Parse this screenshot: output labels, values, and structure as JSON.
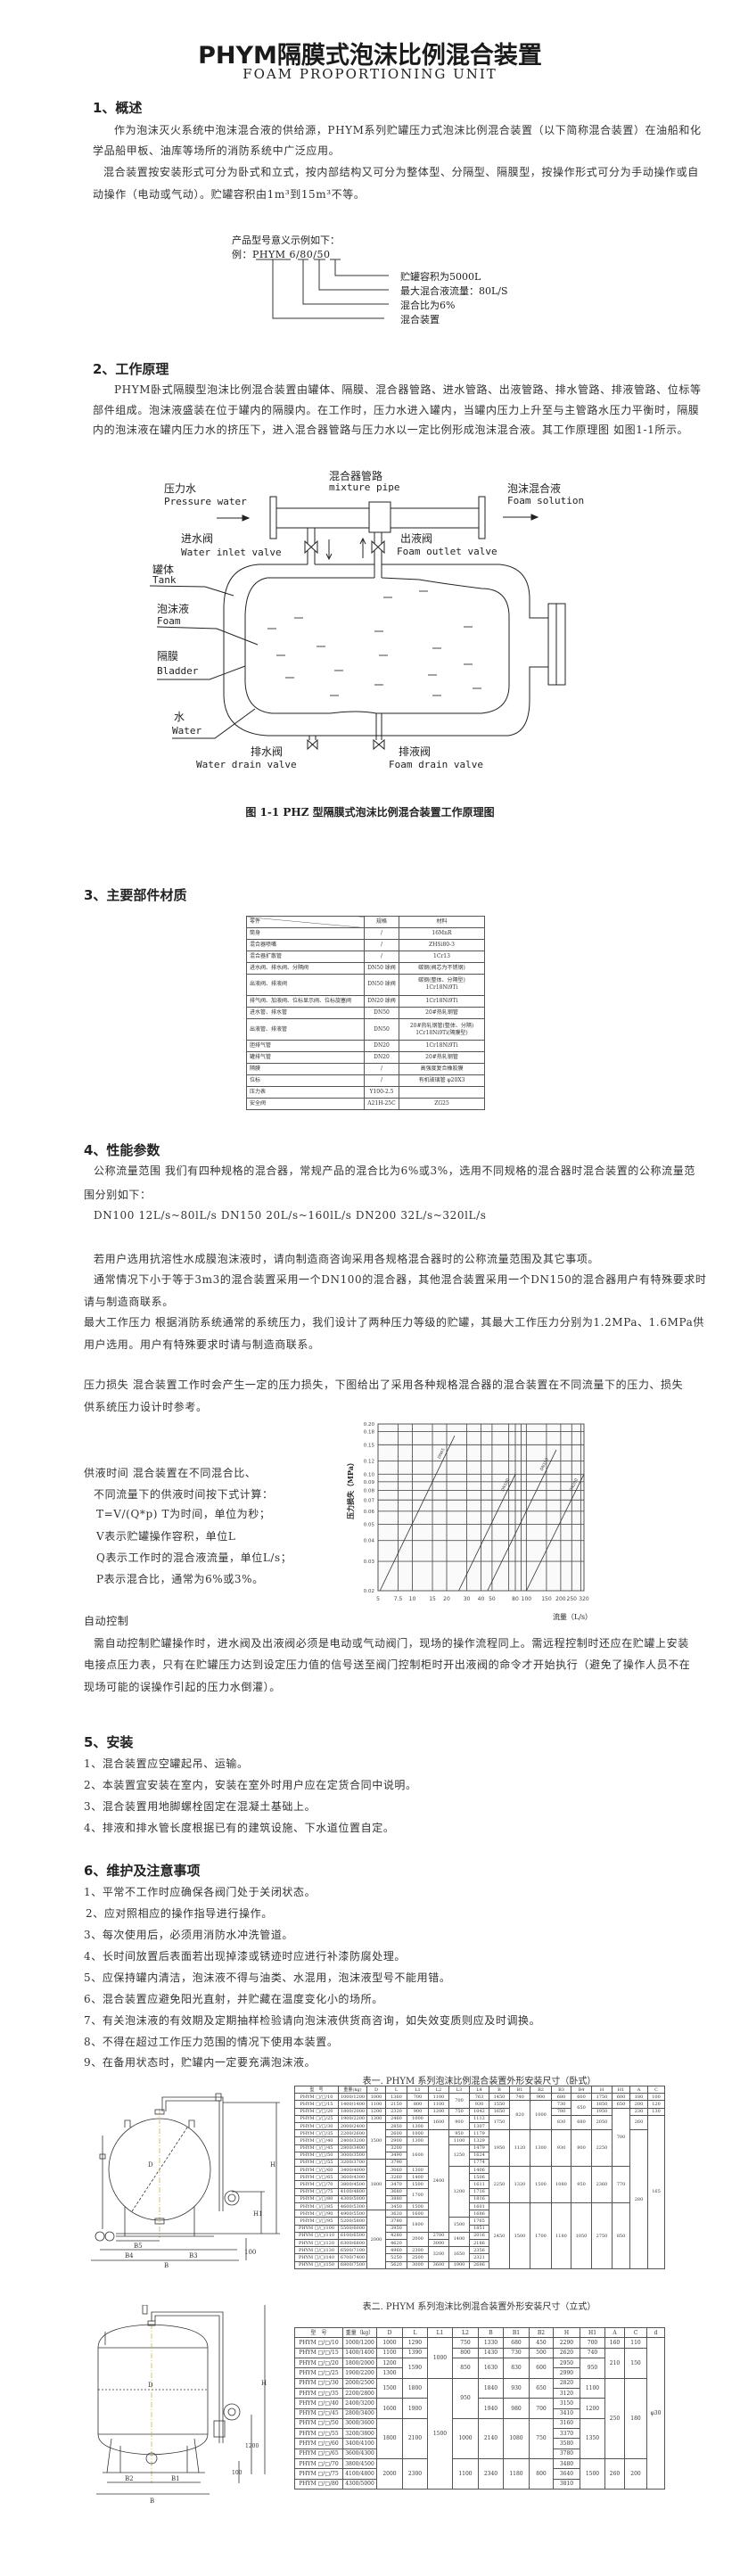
{
  "header": {
    "title": "PHYM隔膜式泡沫比例混合装置",
    "subtitle": "FOAM PROPORTIONING UNIT"
  },
  "s1": {
    "heading": "1、概述",
    "lines": [
      "作为泡沫灭火系统中泡沫混合液的供给源，PHYM系列贮罐压力式泡沫比例混合装置（以下简称混合装置）在油船和化",
      "学品船甲板、油库等场所的消防系统中广泛应用。",
      "混合装置按安装形式可分为卧式和立式，按内部结构又可分为整体型、分隔型、隔膜型，按操作形式可分为手动操作或自",
      "动操作（电动或气动）。贮罐容积由1m³到15m³不等。"
    ],
    "model": {
      "intro": "产品型号意义示例如下：",
      "example_prefix": "例：",
      "code_parts": [
        "PHYM",
        "6",
        "80",
        "50"
      ],
      "separator": "/",
      "meanings": [
        "贮罐容积为5000L",
        "最大混合液流量：80L/S",
        "混合比为6%",
        "混合装置"
      ]
    }
  },
  "s2": {
    "heading": "2、工作原理",
    "lines": [
      "PHYM卧式隔膜型泡沫比例混合装置由罐体、隔膜、混合器管路、进水管路、出液管路、排水管路、排液管路、位标等",
      "部件组成。泡沫液盛装在位于罐内的隔膜内。在工作时，压力水进入罐内，当罐内压力上升至与主管路水压力平衡时，隔膜",
      "内的泡沫液在罐内压力水的挤压下，进入混合器管路与压力水以一定比例形成泡沫混合液。其工作原理图 如图1-1所示。"
    ],
    "diagram": {
      "mixture_pipe_cn": "混合器管路",
      "mixture_pipe_en": "mixture pipe",
      "pressure_water_cn": "压力水",
      "pressure_water_en": "Pressure water",
      "foam_solution_cn": "泡沫混合液",
      "foam_solution_en": "Foam solution",
      "inlet_valve_cn": "进水阀",
      "inlet_valve_en": "Water inlet valve",
      "outlet_valve_cn": "出液阀",
      "outlet_valve_en": "Foam outlet valve",
      "tank_cn": "罐体",
      "tank_en": "Tank",
      "foam_cn": "泡沫液",
      "foam_en": "Foam",
      "bladder_cn": "隔膜",
      "bladder_en": "Bladder",
      "water_cn": "水",
      "water_en": "Water",
      "water_drain_cn": "排水阀",
      "water_drain_en": "Water drain valve",
      "foam_drain_cn": "排液阀",
      "foam_drain_en": "Foam drain valve"
    },
    "caption": "图 1-1 PHZ 型隔膜式泡沫比例混合装置工作原理图"
  },
  "s3": {
    "heading": "3、主要部件材质",
    "table": {
      "headers": [
        "零件",
        "规格",
        "材料"
      ],
      "rows": [
        [
          "筒身",
          "/",
          "16MnR"
        ],
        [
          "混合器喷嘴",
          "/",
          "ZHSi80-3"
        ],
        [
          "混合器扩散管",
          "/",
          "1Cr13"
        ],
        [
          "进水阀、排水阀、分隔阀",
          "DN50 球阀",
          "碳钢(阀芯为不锈钢)"
        ],
        [
          "出液阀、排液阀",
          "DN50 球阀",
          "碳钢(整体、分隔型)\n1Cr18Ni9Ti"
        ],
        [
          "排气阀、加液阀、位标显示阀、位标旋塞阀",
          "DN20 球阀",
          "1Cr18Ni9Ti"
        ],
        [
          "进水管、排水管",
          "DN50",
          "20#热轧钢管"
        ],
        [
          "出液管、排液管",
          "DN50",
          "20#热轧钢管(整体、分隔)\n1Cr18Ni9Ti(隔膜型)"
        ],
        [
          "胆排气管",
          "DN20",
          "1Cr18Ni9Ti"
        ],
        [
          "罐排气管",
          "DN20",
          "20#热轧钢管"
        ],
        [
          "隔膜",
          "/",
          "高强度复合橡胶膜"
        ],
        [
          "位标",
          "/",
          "有机玻璃管 φ20X3"
        ],
        [
          "压力表",
          "Y100-2.5",
          ""
        ],
        [
          "安全阀",
          "A21H-25C",
          "ZG25"
        ]
      ]
    }
  },
  "s4": {
    "heading": "4、性能参数",
    "lines": [
      "公称流量范围  我们有四种规格的混合器，常规产品的混合比为6%或3%，选用不同规格的混合器时混合装置的公称流量范",
      "围分别如下：",
      "DN100  12L/s~80lL/s   DN150  20L/s~160lL/s   DN200  32L/s~320lL/s",
      "若用户选用抗溶性水成膜泡沫液时，请向制造商咨询采用各规格混合器时的公称流量范围及其它事项。",
      "通常情况下小于等于3m3的混合装置采用一个DN100的混合器，其他混合装置采用一个DN150的混合器用户有特殊要求时",
      "请与制造商联系。",
      "最大工作压力  根据消防系统通常的系统压力，我们设计了两种压力等级的贮罐，其最大工作压力分别为1.2MPa、1.6MPa供",
      "用户选用。用户有特殊要求时请与制造商联系。",
      "压力损失  混合装置工作时会产生一定的压力损失，下图给出了采用各种规格混合器的混合装置在不同流量下的压力、损失",
      "供系统压力设计时参考。"
    ],
    "supply": [
      "供液时间  混合装置在不同混合比、",
      "不同流量下的供液时间按下式计算：",
      "T=V/(Q*p)     T为时间，单位为秒；",
      "V表示贮罐操作容积，单位L",
      "Q表示工作时的混合液流量，单位L/s；",
      "P表示混合比，通常为6%或3%。"
    ],
    "auto_heading": "自动控制",
    "auto_lines": [
      "需自动控制贮罐操作时，进水阀及出液阀必须是电动或气动阀门，现场的操作流程同上。需远程控制时还应在贮罐上安装",
      "电接点压力表，只有在贮罐压力达到设定压力值的信号送至阀门控制柜时开出液阀的命令才开始执行（避免了操作人员不在",
      "现场可能的误操作引起的压力水倒灌）。"
    ]
  },
  "chart_data": {
    "type": "line",
    "xscale": "log",
    "yscale": "log",
    "xlim": [
      5,
      320
    ],
    "ylim": [
      0.02,
      0.2
    ],
    "xlabel": "流量（L/s）",
    "ylabel": "压力损失（MPa）",
    "grid": true,
    "xticks": [
      5,
      7.5,
      10,
      15,
      20,
      30,
      40,
      50,
      80,
      100,
      150,
      200,
      250,
      320
    ],
    "xtick_labels": [
      "5",
      "7.5",
      "10",
      "15",
      "20",
      "30",
      "40",
      "50",
      "80",
      "100",
      "150",
      "200",
      "250",
      "320"
    ],
    "extra_grid_x": [
      70,
      90,
      300
    ],
    "yticks": [
      0.02,
      0.03,
      0.04,
      0.05,
      0.06,
      0.07,
      0.08,
      0.09,
      0.1,
      0.12,
      0.15,
      0.18,
      0.2
    ],
    "ytick_labels": [
      "0.02",
      "0.03",
      "0.04",
      "0.05",
      "0.06",
      "0.07",
      "0.08",
      "0.09",
      "0.10",
      "0.12",
      "0.15",
      "0.18",
      "0.20"
    ],
    "series": [
      {
        "name": "DN65",
        "x": [
          5.2,
          23.5
        ],
        "y": [
          0.02,
          0.17
        ]
      },
      {
        "name": "DN100",
        "x": [
          25.5,
          80
        ],
        "y": [
          0.02,
          0.1
        ]
      },
      {
        "name": "DN150",
        "x": [
          45.6,
          183
        ],
        "y": [
          0.02,
          0.14
        ]
      },
      {
        "name": "DN200",
        "x": [
          100,
          320
        ],
        "y": [
          0.02,
          0.1
        ]
      }
    ]
  },
  "s5": {
    "heading": "5、安装",
    "items": [
      "1、混合装置应空罐起吊、运输。",
      "2、本装置宜安装在室内，安装在室外时用户应在定货合同中说明。",
      "3、混合装置用地脚螺栓固定在混凝土基础上。",
      "4、排液和排水管长度根据已有的建筑设施、下水道位置自定。"
    ]
  },
  "s6": {
    "heading": "6、维护及注意事项",
    "items": [
      "1、平常不工作时应确保各阀门处于关闭状态。",
      "2、应对照相应的操作指导进行操作。",
      "3、每次使用后，必须用消防水冲洗管道。",
      "4、长时间放置后表面若出现掉漆或锈迹时应进行补漆防腐处理。",
      "5、应保持罐内清洁，泡沫液不得与油类、水混用，泡沫液型号不能用错。",
      "6、混合装置应避免阳光直射，并贮藏在温度变化小的场所。",
      "7、有关泡沫液的有效期及定期抽样检验请向泡沫液供货商咨询，如失效变质则应及时调换。",
      "8、不得在超过工作压力范围的情况下使用本装置。",
      "9、在备用状态时，贮罐内一定要充满泡沫液。"
    ]
  },
  "drawings": {
    "horizontal": {
      "D": "D",
      "H": "H",
      "H1": "H1",
      "B": "B",
      "B3": "B3",
      "B4": "B4",
      "B5": "B5",
      "base": "100"
    },
    "vertical": {
      "D": "D",
      "H": "H",
      "B": "B",
      "B1": "B1",
      "B2": "B2",
      "h1200": "1200",
      "base": "100"
    }
  },
  "table1": {
    "title": "表一. PHYM 系列泡沫比例混合装置外形安装尺寸（卧式）",
    "headers": [
      "型　号",
      "重量(kg)",
      "D",
      "L",
      "L1",
      "L2",
      "L3",
      "L4",
      "B",
      "B1",
      "B2",
      "B3",
      "B4",
      "H",
      "H1",
      "A",
      "C"
    ],
    "rows": [
      [
        "PHYM □/□/10",
        "1000/1200",
        "1000",
        "1360",
        "700",
        "1100",
        {
          "t": "700",
          "rs": 2
        },
        "763",
        "1450",
        "740",
        "900",
        "680",
        "600",
        "1750",
        "600",
        "180",
        "100"
      ],
      [
        "PHYM □/□/15",
        "1400/1400",
        "1100",
        "2150",
        "800",
        "1100",
        "930",
        "1550",
        {
          "t": "820",
          "rs": 4
        },
        {
          "t": "1000",
          "rs": 4
        },
        "730",
        {
          "t": "650",
          "rs": 2
        },
        "1850",
        "650",
        "200",
        "120"
      ],
      [
        "PHYM □/□/20",
        "1800/2000",
        "1200",
        "2320",
        "900",
        "1200",
        "750",
        "1042",
        "1650",
        "780",
        "1950",
        {
          "t": "700",
          "rs": 8
        },
        "230",
        "130"
      ],
      [
        "PHYM □/□/25",
        "1900/2200",
        "1300",
        "2460",
        "1000",
        {
          "t": "1600",
          "rs": 2
        },
        {
          "t": "900",
          "rs": 2
        },
        "1112",
        {
          "t": "1750",
          "rs": 2
        },
        {
          "t": "830",
          "rs": 2
        },
        {
          "t": "680",
          "rs": 2
        },
        {
          "t": "2050",
          "rs": 2
        },
        {
          "t": "260",
          "rs": 2
        },
        {
          "t": "165",
          "rs": 21
        }
      ],
      [
        "PHYM □/□/30",
        "2000/2400",
        {
          "t": "1500",
          "rs": 5
        },
        "2850",
        "1300",
        "1307"
      ],
      [
        "PHYM □/□/35",
        "2200/2600",
        "2600",
        "1000",
        {
          "t": "2400",
          "rs": 14
        },
        "950",
        "1179",
        {
          "t": "1950",
          "rs": 5
        },
        {
          "t": "1120",
          "rs": 5
        },
        {
          "t": "1300",
          "rs": 5
        },
        {
          "t": "930",
          "rs": 5
        },
        {
          "t": "800",
          "rs": 5
        },
        {
          "t": "2250",
          "rs": 5
        },
        {
          "t": "280",
          "rs": 19
        }
      ],
      [
        "PHYM □/□/40",
        "2400/3200",
        "2900",
        "1300",
        "1100",
        "1329"
      ],
      [
        "PHYM □/□/45",
        "2800/3400",
        "3200",
        {
          "t": "1600",
          "rs": 3
        },
        {
          "t": "1250",
          "rs": 3
        },
        "1479"
      ],
      [
        "PHYM □/□/50",
        "3000/3500",
        "3490",
        "1624"
      ],
      [
        "PHYM □/□/55",
        "3200/3700",
        {
          "t": "1800",
          "rs": 7
        },
        "3790",
        "1774"
      ],
      [
        "PHYM □/□/60",
        "3400/4000",
        "3060",
        "1300",
        {
          "t": "1200",
          "rs": 7
        },
        "1406",
        {
          "t": "2250",
          "rs": 5
        },
        {
          "t": "1320",
          "rs": 5
        },
        {
          "t": "1500",
          "rs": 5
        },
        {
          "t": "1080",
          "rs": 5
        },
        {
          "t": "950",
          "rs": 5
        },
        {
          "t": "2360",
          "rs": 5
        },
        {
          "t": "770",
          "rs": 5
        }
      ],
      [
        "PHYM □/□/65",
        "3600/4300",
        "3260",
        "1400",
        "1506"
      ],
      [
        "PHYM □/□/70",
        "3800/4500",
        "3470",
        "1500",
        "1611"
      ],
      [
        "PHYM □/□/75",
        "4100/4800",
        "3680",
        {
          "t": "1700",
          "rs": 2
        },
        "1716"
      ],
      [
        "PHYM □/□/80",
        "4300/5000",
        "3880",
        "1816"
      ],
      [
        "PHYM □/□/85",
        "4600/5300",
        "3450",
        "1500",
        "1601",
        {
          "t": "2450",
          "rs": 9
        },
        {
          "t": "1500",
          "rs": 9
        },
        {
          "t": "1700",
          "rs": 9
        },
        {
          "t": "1180",
          "rs": 9
        },
        {
          "t": "1050",
          "rs": 9
        },
        {
          "t": "2750",
          "rs": 9
        },
        {
          "t": "850",
          "rs": 9
        }
      ],
      [
        "PHYM □/□/90",
        "4900/5500",
        {
          "t": "2000",
          "rs": 8
        },
        "3620",
        "1600",
        "1686"
      ],
      [
        "PHYM □/□/95",
        "5200/5800",
        "3780",
        {
          "t": "1800",
          "rs": 2
        },
        {
          "t": "1500",
          "rs": 2
        },
        "1765"
      ],
      [
        "PHYM □/□/100",
        "5500/6000",
        "3950",
        "1851"
      ],
      [
        "PHYM □/□/110",
        "6100/6500",
        "4280",
        {
          "t": "2000",
          "rs": 2
        },
        "2700",
        {
          "t": "1400",
          "rs": 2
        },
        "2016"
      ],
      [
        "PHYM □/□/120",
        "6300/6800",
        "4620",
        "3000",
        "2186"
      ],
      [
        "PHYM □/□/130",
        "6500/7100",
        "4960",
        "2300",
        {
          "t": "3200",
          "rs": 2
        },
        {
          "t": "1650",
          "rs": 2
        },
        "2356"
      ],
      [
        "PHYM □/□/140",
        "6700/7400",
        "5250",
        "2500",
        "2321"
      ],
      [
        "PHYM □/□/150",
        "6800/7500",
        "5620",
        "3000",
        "3600",
        "1900",
        "2686"
      ]
    ]
  },
  "table2": {
    "title": "表二. PHYM 系列泡沫比例混合装置外形安装尺寸（立式）",
    "headers": [
      "型　号",
      "重量（kg）",
      "D",
      "L",
      "L1",
      "L2",
      "B",
      "B1",
      "B2",
      "H",
      "H1",
      "A",
      "C",
      "d"
    ],
    "rows": [
      [
        "PHYM □/□/10",
        "1000/1200",
        "1000",
        "1290",
        {
          "t": "1000",
          "rs": 4
        },
        "750",
        "1330",
        "680",
        "450",
        "2290",
        "700",
        "160",
        "110",
        {
          "t": "φ30",
          "rs": 15
        }
      ],
      [
        "PHYM □/□/15",
        "1400/1400",
        "1100",
        "1390",
        "800",
        "1430",
        "730",
        "500",
        "2620",
        "740",
        {
          "t": "210",
          "rs": 3
        },
        {
          "t": "150",
          "rs": 3
        }
      ],
      [
        "PHYM □/□/20",
        "1800/2000",
        "1200",
        {
          "t": "1590",
          "rs": 2
        },
        {
          "t": "850",
          "rs": 2
        },
        {
          "t": "1630",
          "rs": 2
        },
        {
          "t": "830",
          "rs": 2
        },
        {
          "t": "600",
          "rs": 2
        },
        "2950",
        {
          "t": "950",
          "rs": 2
        }
      ],
      [
        "PHYM □/□/25",
        "1900/2200",
        "1300",
        "2990"
      ],
      [
        "PHYM □/□/30",
        "2000/2500",
        {
          "t": "1500",
          "rs": 2
        },
        {
          "t": "1800",
          "rs": 2
        },
        {
          "t": "1500",
          "rs": 11
        },
        {
          "t": "950",
          "rs": 4
        },
        {
          "t": "1840",
          "rs": 2
        },
        {
          "t": "930",
          "rs": 2
        },
        {
          "t": "650",
          "rs": 2
        },
        "2820",
        {
          "t": "1100",
          "rs": 2
        },
        {
          "t": "250",
          "rs": 8
        },
        {
          "t": "180",
          "rs": 8
        }
      ],
      [
        "PHYM □/□/35",
        "2200/2800",
        "3120"
      ],
      [
        "PHYM □/□/40",
        "2400/3200",
        {
          "t": "1600",
          "rs": 2
        },
        {
          "t": "1900",
          "rs": 2
        },
        {
          "t": "1940",
          "rs": 2
        },
        {
          "t": "980",
          "rs": 2
        },
        {
          "t": "700",
          "rs": 2
        },
        "3150",
        {
          "t": "1200",
          "rs": 2
        }
      ],
      [
        "PHYM □/□/45",
        "2800/3400",
        "3410"
      ],
      [
        "PHYM □/□/50",
        "3000/3600",
        {
          "t": "1800",
          "rs": 4
        },
        {
          "t": "2100",
          "rs": 4
        },
        {
          "t": "1000",
          "rs": 4
        },
        {
          "t": "2140",
          "rs": 4
        },
        {
          "t": "1080",
          "rs": 4
        },
        {
          "t": "750",
          "rs": 4
        },
        "3160",
        {
          "t": "1350",
          "rs": 4
        }
      ],
      [
        "PHYM □/□/55",
        "3200/3800",
        "3370"
      ],
      [
        "PHYM □/□/60",
        "3400/4100",
        "3580"
      ],
      [
        "PHYM □/□/65",
        "3600/4300",
        "3780"
      ],
      [
        "PHYM □/□/70",
        "3800/4500",
        {
          "t": "2000",
          "rs": 3
        },
        {
          "t": "2300",
          "rs": 3
        },
        {
          "t": "1100",
          "rs": 3
        },
        {
          "t": "2340",
          "rs": 3
        },
        {
          "t": "1180",
          "rs": 3
        },
        {
          "t": "800",
          "rs": 3
        },
        "3480",
        {
          "t": "1500",
          "rs": 3
        },
        {
          "t": "260",
          "rs": 3
        },
        {
          "t": "200",
          "rs": 3
        }
      ],
      [
        "PHYM □/□/75",
        "4100/4800",
        "3640"
      ],
      [
        "PHYM □/□/80",
        "4300/5000",
        "3810"
      ]
    ]
  }
}
